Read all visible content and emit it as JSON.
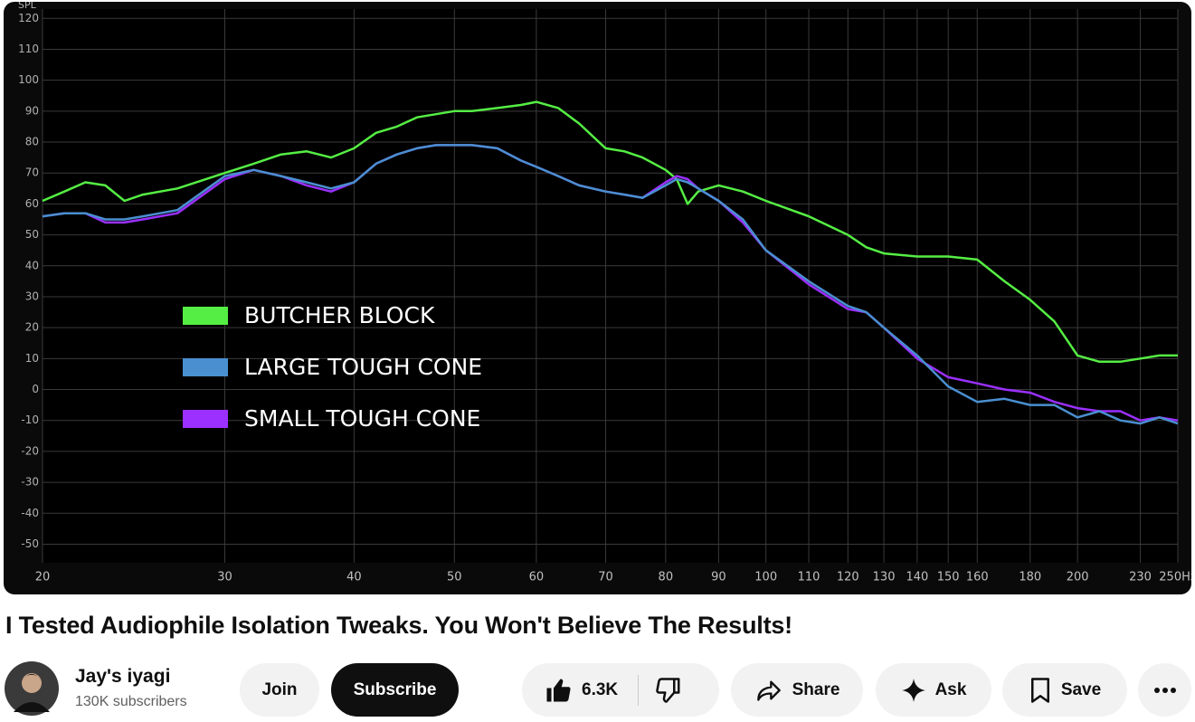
{
  "chart_data": {
    "type": "line",
    "ylabel": "SPL",
    "xscale": "log",
    "grid": true,
    "legend": "left",
    "xlim": [
      20,
      250
    ],
    "ylim": [
      -56,
      123
    ],
    "xticks": [
      20,
      30,
      40,
      50,
      60,
      70,
      80,
      90,
      100,
      110,
      120,
      130,
      140,
      150,
      160,
      180,
      200,
      230,
      {
        "value": 250,
        "label": "250Hz"
      }
    ],
    "yticks": [
      -50,
      -40,
      -30,
      -20,
      -10,
      0,
      10,
      20,
      30,
      40,
      50,
      60,
      70,
      80,
      90,
      100,
      110,
      120
    ],
    "x": [
      20,
      21,
      22,
      23,
      24,
      25,
      27,
      30,
      32,
      34,
      36,
      38,
      40,
      42,
      44,
      46,
      48,
      50,
      52,
      55,
      58,
      60,
      63,
      66,
      70,
      73,
      76,
      80,
      82,
      84,
      86,
      90,
      95,
      100,
      110,
      120,
      125,
      130,
      140,
      150,
      160,
      170,
      180,
      190,
      200,
      210,
      220,
      230,
      240,
      250
    ],
    "series": [
      {
        "name": "BUTCHER BLOCK",
        "color": "#55ee44",
        "values": [
          61,
          64,
          67,
          66,
          61,
          63,
          65,
          70,
          73,
          76,
          77,
          75,
          78,
          83,
          85,
          88,
          89,
          90,
          90,
          91,
          92,
          93,
          91,
          86,
          78,
          77,
          75,
          71,
          68,
          60,
          64,
          66,
          64,
          61,
          56,
          50,
          46,
          44,
          43,
          43,
          42,
          35,
          29,
          22,
          11,
          9,
          9,
          10,
          11,
          11
        ]
      },
      {
        "name": "SMALL TOUGH CONE",
        "color": "#9b30ff",
        "values": [
          56,
          57,
          57,
          54,
          54,
          55,
          57,
          68,
          71,
          69,
          66,
          64,
          67,
          73,
          76,
          78,
          79,
          79,
          79,
          78,
          74,
          72,
          69,
          66,
          64,
          63,
          62,
          67,
          69,
          68,
          65,
          61,
          54,
          45,
          34,
          26,
          25,
          20,
          10,
          4,
          2,
          0,
          -1,
          -4,
          -6,
          -7,
          -7,
          -10,
          -9,
          -10
        ]
      },
      {
        "name": "LARGE TOUGH CONE",
        "color": "#4a8fd0",
        "values": [
          56,
          57,
          57,
          55,
          55,
          56,
          58,
          69,
          71,
          69,
          67,
          65,
          67,
          73,
          76,
          78,
          79,
          79,
          79,
          78,
          74,
          72,
          69,
          66,
          64,
          63,
          62,
          66,
          68,
          67,
          65,
          61,
          55,
          45,
          35,
          27,
          25,
          20,
          11,
          1,
          -4,
          -3,
          -5,
          -5,
          -9,
          -7,
          -10,
          -11,
          -9,
          -11
        ]
      }
    ]
  },
  "video_title": "I Tested Audiophile Isolation Tweaks. You Won't Believe The Results!",
  "channel": {
    "name": "Jay's iyagi",
    "subscribers": "130K subscribers"
  },
  "buttons": {
    "join": "Join",
    "subscribe": "Subscribe",
    "likes": "6.3K",
    "share": "Share",
    "ask": "Ask",
    "save": "Save"
  }
}
